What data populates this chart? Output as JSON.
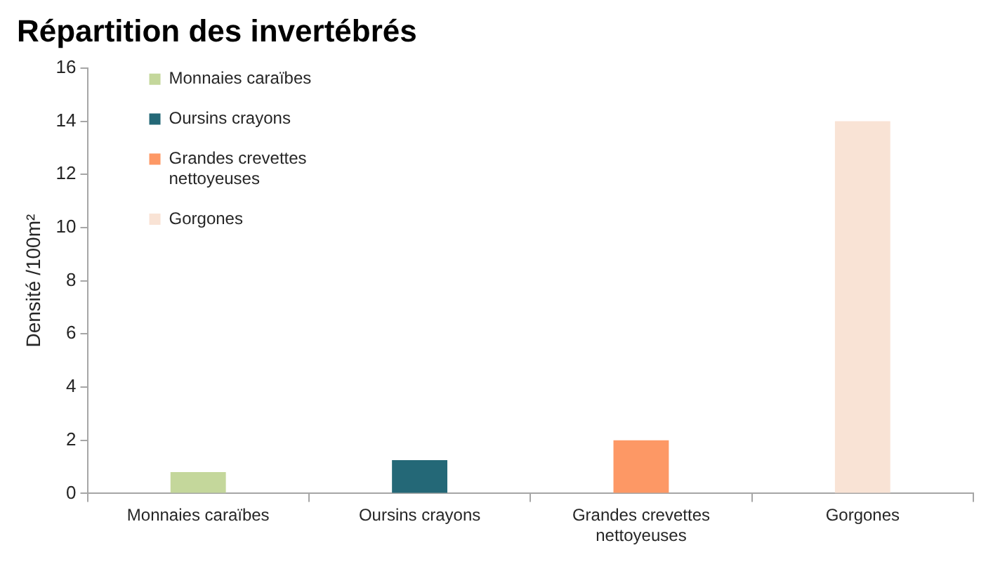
{
  "chart_data": {
    "type": "bar",
    "title": "Répartition des invertébrés",
    "categories": [
      "Monnaies caraïbes",
      "Oursins crayons",
      "Grandes crevettes nettoyeuses",
      "Gorgones"
    ],
    "series": [
      {
        "name": "Monnaies caraïbes",
        "color": "#c4d79b",
        "values": [
          0.8,
          null,
          null,
          null
        ]
      },
      {
        "name": "Oursins crayons",
        "color": "#246877",
        "values": [
          null,
          1.25,
          null,
          null
        ]
      },
      {
        "name": "Grandes crevettes nettoyeuses",
        "color": "#fd9865",
        "values": [
          null,
          null,
          2,
          null
        ]
      },
      {
        "name": "Gorgones",
        "color": "#f9e3d5",
        "values": [
          null,
          null,
          null,
          14
        ]
      }
    ],
    "ylabel": "Densité /100m²",
    "ylim": [
      0,
      16
    ],
    "yticks": [
      0,
      2,
      4,
      6,
      8,
      10,
      12,
      14,
      16
    ],
    "legend": "top left"
  }
}
